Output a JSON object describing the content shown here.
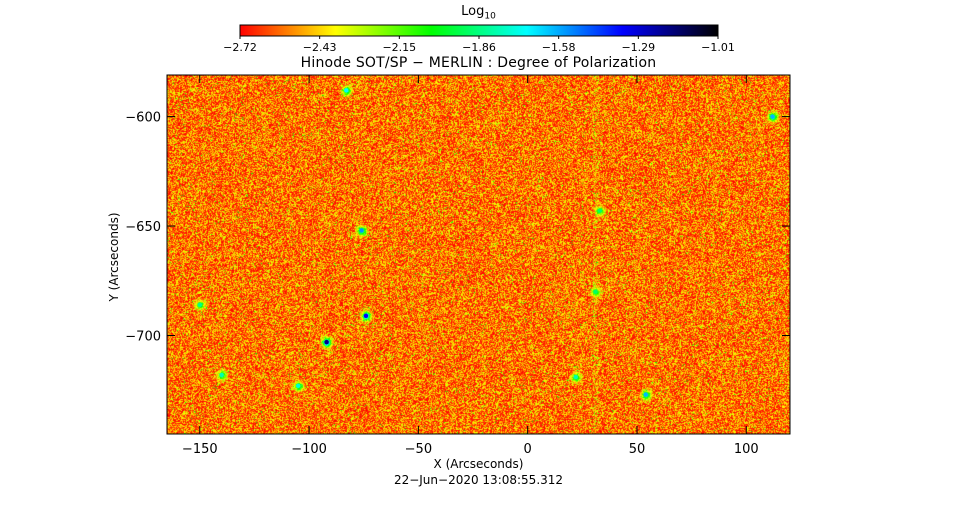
{
  "colorbar": {
    "title": "Log",
    "title_subscript": "10",
    "ticks": [
      "−2.72",
      "−2.43",
      "−2.15",
      "−1.86",
      "−1.58",
      "−1.29",
      "−1.01"
    ],
    "min": -2.72,
    "max": -1.01,
    "colors": [
      "#ff0000",
      "#ffff00",
      "#00ff00",
      "#00ffff",
      "#0000ff",
      "#000000"
    ]
  },
  "chart_data": {
    "type": "heatmap",
    "title": "Hinode SOT/SP − MERLIN : Degree of Polarization",
    "xlabel": "X (Arcseconds)",
    "ylabel": "Y (Arcseconds)",
    "xlim": [
      -165,
      120
    ],
    "ylim": [
      -745,
      -581
    ],
    "xticks": [
      -150,
      -100,
      -50,
      0,
      50,
      100
    ],
    "xtick_labels": [
      "−150",
      "−100",
      "−50",
      "0",
      "50",
      "100"
    ],
    "yticks": [
      -600,
      -650,
      -700
    ],
    "ytick_labels": [
      "−600",
      "−650",
      "−700"
    ],
    "value_scale": "log10",
    "background_range": [
      -2.72,
      -2.3
    ],
    "features": [
      {
        "x": -92,
        "y": -703,
        "value": -1.2
      },
      {
        "x": -74,
        "y": -691,
        "value": -1.35
      },
      {
        "x": -76,
        "y": -652,
        "value": -1.55
      },
      {
        "x": 54,
        "y": -727,
        "value": -1.6
      },
      {
        "x": -105,
        "y": -723,
        "value": -1.75
      },
      {
        "x": 22,
        "y": -719,
        "value": -1.8
      },
      {
        "x": -150,
        "y": -686,
        "value": -1.85
      },
      {
        "x": 31,
        "y": -680,
        "value": -1.9
      },
      {
        "x": -83,
        "y": -588,
        "value": -1.7
      },
      {
        "x": 112,
        "y": -600,
        "value": -1.6
      },
      {
        "x": 33,
        "y": -643,
        "value": -1.9
      },
      {
        "x": -140,
        "y": -718,
        "value": -1.8
      }
    ],
    "grid": false
  },
  "footer": {
    "timestamp": "22−Jun−2020 13:08:55.312"
  }
}
